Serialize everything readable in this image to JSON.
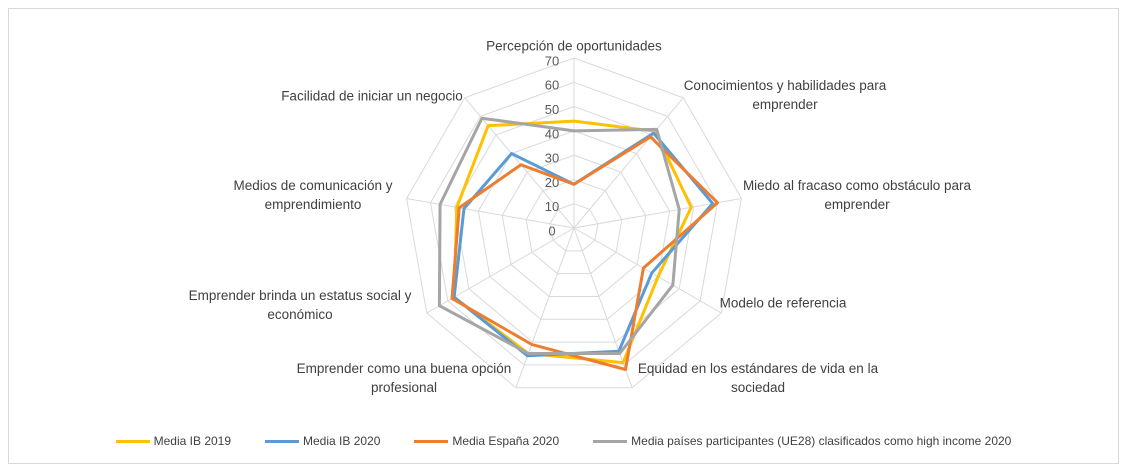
{
  "chart_data": {
    "type": "radar",
    "categories": [
      "Percepción de oportunidades",
      "Conocimientos y habilidades para emprender",
      "Miedo al fracaso como obstáculo para emprender",
      "Modelo de referencia",
      "Equidad en los estándares de vida en la sociedad",
      "Emprender como una buena opción profesional",
      "Emprender brinda un estatus social y económico",
      "Medios de comunicación y emprendimiento",
      "Facilidad de iniciar un negocio"
    ],
    "series": [
      {
        "name": "Media IB 2019",
        "color": "#FFC000",
        "values": [
          44,
          52,
          49,
          40,
          59,
          55,
          57,
          49,
          55
        ]
      },
      {
        "name": "Media IB 2020",
        "color": "#5B9BD5",
        "values": [
          18,
          51,
          58,
          37,
          54,
          56,
          57,
          46,
          40
        ]
      },
      {
        "name": "Media España 2020",
        "color": "#ED7D31",
        "values": [
          18,
          49,
          60,
          33,
          62,
          51,
          58,
          48,
          34
        ]
      },
      {
        "name": "Media países participantes (UE28) clasificados como high income 2020",
        "color": "#A5A5A5",
        "values": [
          40,
          53,
          44,
          47,
          55,
          55,
          64,
          56,
          59
        ]
      }
    ],
    "ylim": [
      0,
      70
    ],
    "yticks": [
      0,
      10,
      20,
      30,
      40,
      50,
      60,
      70
    ],
    "grid": true
  }
}
